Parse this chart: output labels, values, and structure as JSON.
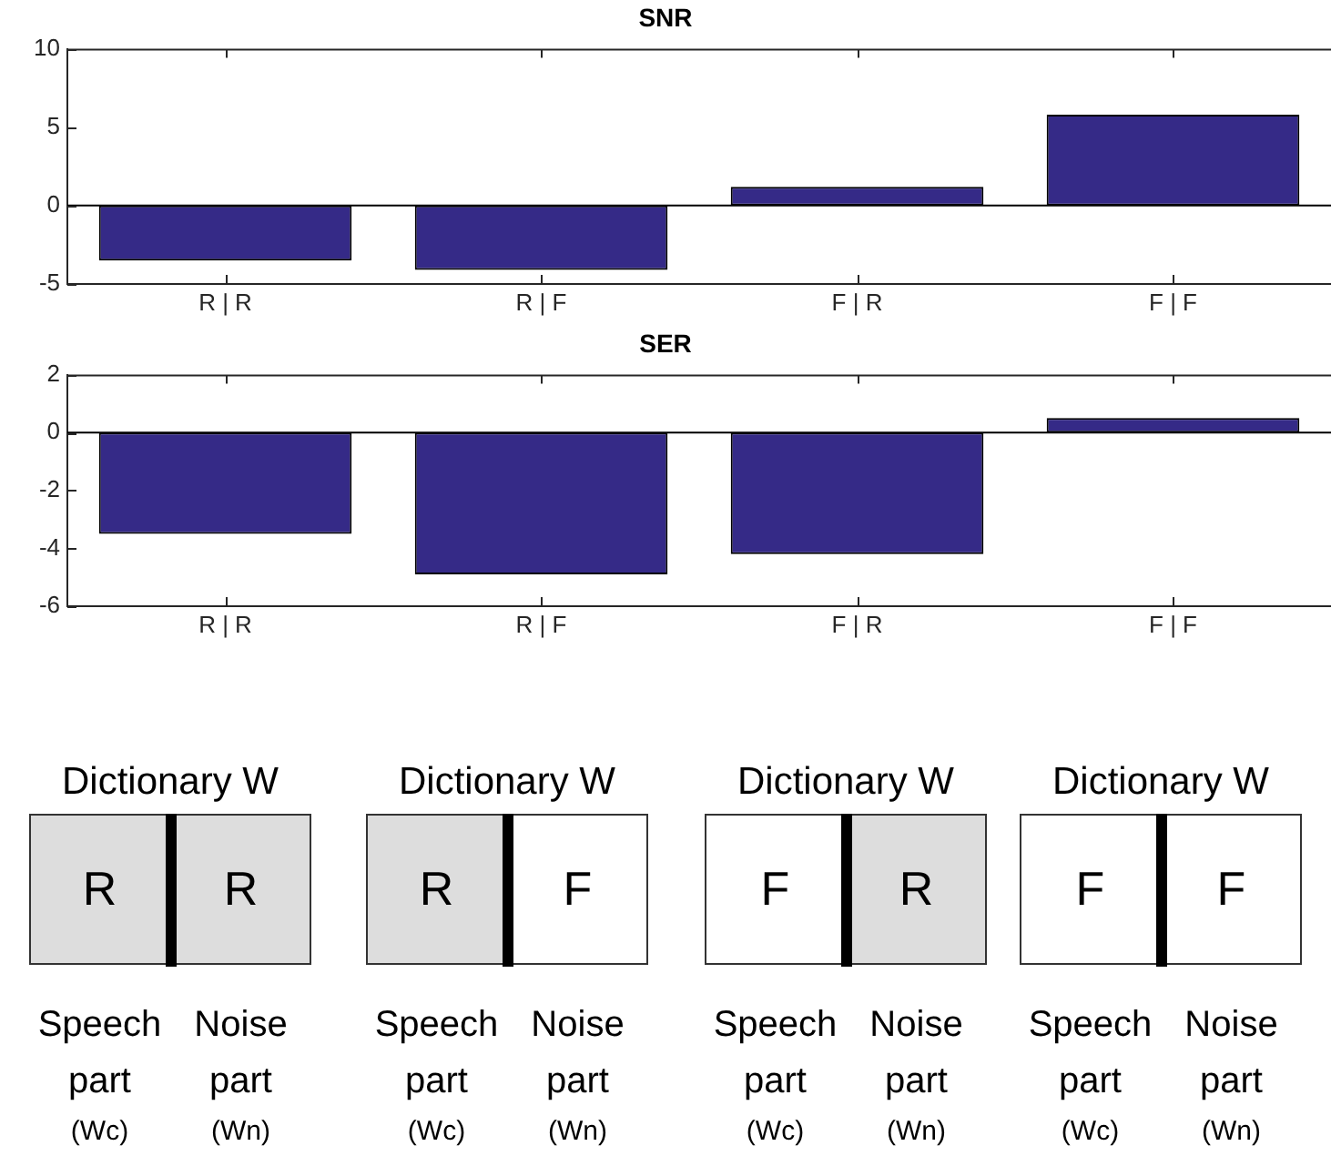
{
  "chart_data": [
    {
      "type": "bar",
      "title": "SNR",
      "categories": [
        "R | R",
        "R | F",
        "F | R",
        "F | F"
      ],
      "values": [
        -3.5,
        -4.1,
        1.2,
        5.8
      ],
      "color": "#352a87",
      "ylim": [
        -5,
        10
      ],
      "yticks": [
        -5,
        0,
        5,
        10
      ],
      "ref_lines": [
        {
          "axis": "y",
          "value": 0,
          "color": "#000000"
        }
      ]
    },
    {
      "type": "bar",
      "title": "SER",
      "categories": [
        "R | R",
        "R | F",
        "F | R",
        "F | F"
      ],
      "values": [
        -3.5,
        -4.9,
        -4.2,
        0.5
      ],
      "color": "#352a87",
      "ylim": [
        -6,
        2
      ],
      "yticks": [
        -6,
        -4,
        -2,
        0,
        2
      ],
      "ref_lines": [
        {
          "axis": "y",
          "value": 0,
          "color": "#000000"
        }
      ]
    },
    {
      "type": "other",
      "title": "Dictionary W",
      "categories": [
        "R",
        "R"
      ],
      "colors": [
        "#dddddd",
        "#dddddd"
      ],
      "annotations": [
        "Speech\npart\n(Wc)",
        "Noise\npart\n(Wn)"
      ]
    },
    {
      "type": "other",
      "title": "Dictionary W",
      "categories": [
        "R",
        "F"
      ],
      "colors": [
        "#dddddd",
        "#ffffff"
      ],
      "annotations": [
        "Speech\npart\n(Wc)",
        "Noise\npart\n(Wn)"
      ]
    },
    {
      "type": "other",
      "title": "Dictionary W",
      "categories": [
        "F",
        "R"
      ],
      "colors": [
        "#ffffff",
        "#dddddd"
      ],
      "annotations": [
        "Speech\npart\n(Wc)",
        "Noise\npart\n(Wn)"
      ]
    },
    {
      "type": "other",
      "title": "Dictionary W",
      "categories": [
        "F",
        "F"
      ],
      "colors": [
        "#ffffff",
        "#ffffff"
      ],
      "annotations": [
        "Speech\npart\n(Wc)",
        "Noise\npart\n(Wn)"
      ]
    }
  ]
}
